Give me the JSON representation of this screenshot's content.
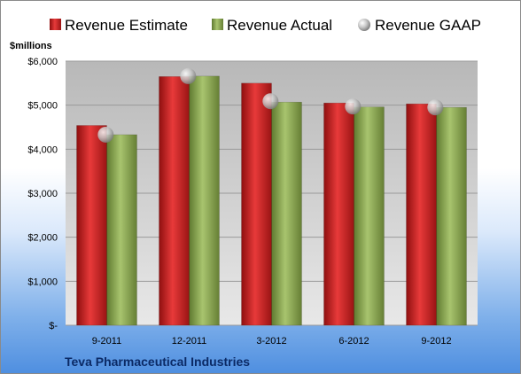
{
  "chart_data": {
    "type": "bar",
    "ylabel": "$millions",
    "footer": "Teva Pharmaceutical Industries",
    "categories": [
      "9-2011",
      "12-2011",
      "3-2012",
      "6-2012",
      "9-2012"
    ],
    "series": [
      {
        "name": "Revenue Estimate",
        "kind": "bar",
        "color": "#d42626",
        "values": [
          4540,
          5650,
          5500,
          5050,
          5030
        ]
      },
      {
        "name": "Revenue Actual",
        "kind": "bar",
        "color": "#8fae58",
        "values": [
          4330,
          5660,
          5070,
          4960,
          4950
        ]
      },
      {
        "name": "Revenue GAAP",
        "kind": "marker",
        "color": "#c0c0c0",
        "values": [
          4330,
          5660,
          5090,
          4970,
          4950
        ]
      }
    ],
    "ylim": [
      0,
      6000
    ],
    "yticks": [
      0,
      1000,
      2000,
      3000,
      4000,
      5000,
      6000
    ],
    "ytick_labels": [
      "$-",
      "$1,000",
      "$2,000",
      "$3,000",
      "$4,000",
      "$5,000",
      "$6,000"
    ],
    "grid": true,
    "legend_position": "top"
  }
}
